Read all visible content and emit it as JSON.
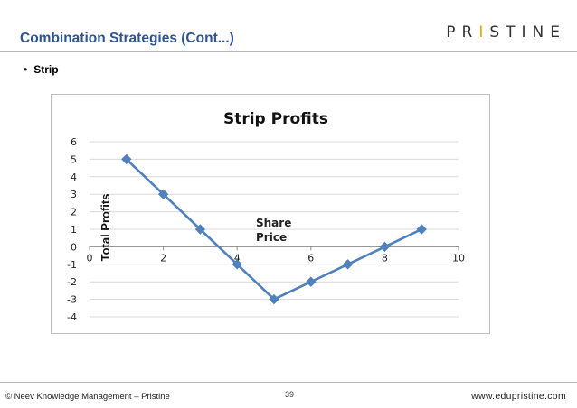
{
  "slide": {
    "title": "Combination Strategies (Cont...)",
    "brand_prefix": "PR",
    "brand_accent": "I",
    "brand_suffix": "STINE",
    "bullet_symbol": "•",
    "bullet_text": "Strip"
  },
  "footer": {
    "left": "© Neev Knowledge Management – Pristine",
    "page": "39",
    "right": "www.edupristine.com"
  },
  "colors": {
    "title": "#2f5496",
    "series": "#4f81bd",
    "grid": "#d9d9d9",
    "brand_accent": "#f0a000"
  },
  "chart_data": {
    "type": "line",
    "title": "Strip Profits",
    "xlabel": "Share Price",
    "ylabel": "Total Profits",
    "xlim": [
      0,
      10
    ],
    "ylim": [
      -4,
      6
    ],
    "x_ticks": [
      0,
      2,
      4,
      6,
      8,
      10
    ],
    "y_ticks": [
      -4,
      -3,
      -2,
      -1,
      0,
      1,
      2,
      3,
      4,
      5,
      6
    ],
    "grid": true,
    "legend": "none",
    "series": [
      {
        "x": [
          1,
          2,
          3,
          4,
          5,
          6,
          7,
          8,
          9
        ],
        "values": [
          5,
          3,
          1,
          -1,
          -3,
          -2,
          -1,
          0,
          1
        ]
      }
    ]
  }
}
